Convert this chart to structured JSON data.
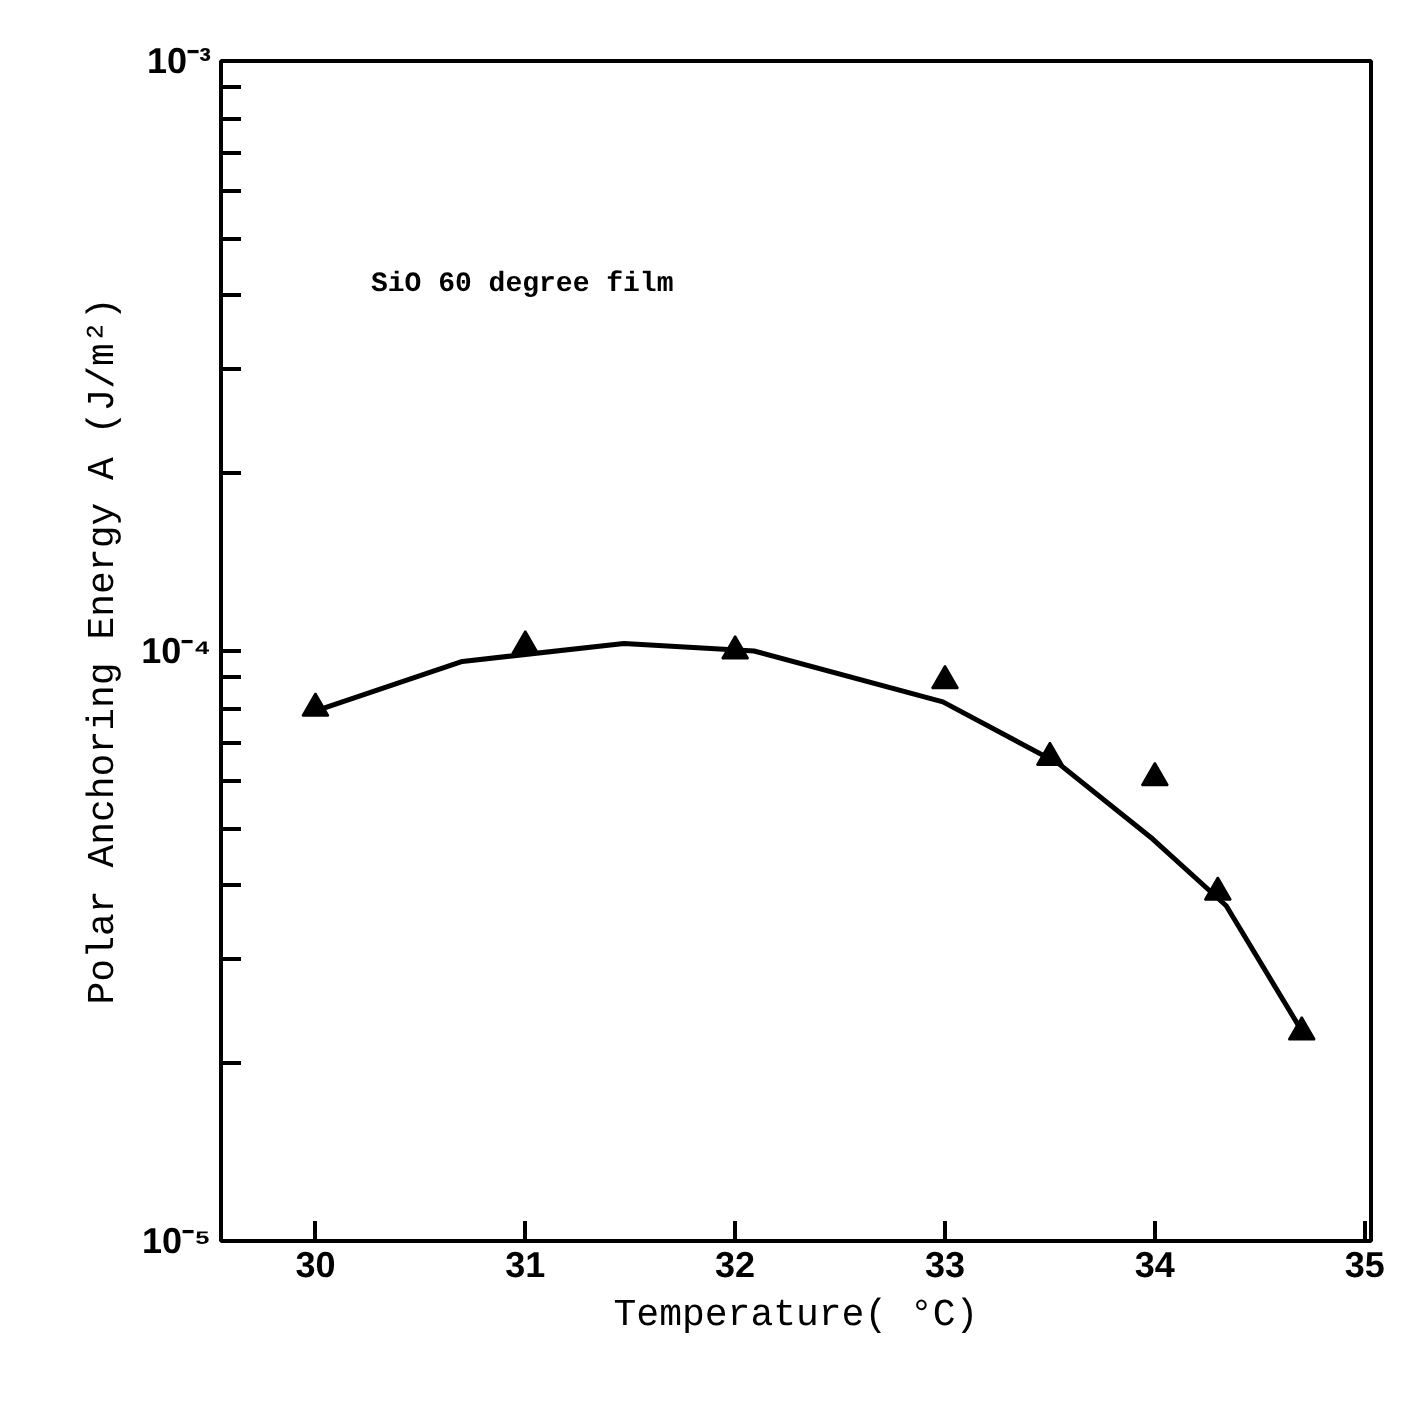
{
  "chart_data": {
    "type": "scatter",
    "xlabel": "Temperature( °C)",
    "ylabel": "Polar Anchoring Energy A (J/m²)",
    "annotations": [
      "SiO 60 degree film"
    ],
    "log": "y",
    "grid": false,
    "marker": "triangle",
    "xlim": [
      29.55,
      35.03
    ],
    "xticks": [
      30,
      31,
      32,
      33,
      34,
      35
    ],
    "ylim": [
      1e-05,
      0.001
    ],
    "yticks": [
      {
        "value": 1e-05,
        "label": "10⁻⁵"
      },
      {
        "value": 2e-05,
        "label": null
      },
      {
        "value": 3e-05,
        "label": null
      },
      {
        "value": 4e-05,
        "label": null
      },
      {
        "value": 5e-05,
        "label": null
      },
      {
        "value": 6e-05,
        "label": null
      },
      {
        "value": 7e-05,
        "label": null
      },
      {
        "value": 8e-05,
        "label": null
      },
      {
        "value": 9e-05,
        "label": null
      },
      {
        "value": 0.0001,
        "label": "10⁻⁴"
      },
      {
        "value": 0.0002,
        "label": null
      },
      {
        "value": 0.0003,
        "label": null
      },
      {
        "value": 0.0004,
        "label": null
      },
      {
        "value": 0.0005,
        "label": null
      },
      {
        "value": 0.0006,
        "label": null
      },
      {
        "value": 0.0007,
        "label": null
      },
      {
        "value": 0.0008,
        "label": null
      },
      {
        "value": 0.0009,
        "label": null
      },
      {
        "value": 0.001,
        "label": "10⁻³"
      }
    ],
    "series": [
      {
        "color": "#000000",
        "x": [
          30,
          31,
          32,
          33,
          33.5,
          34,
          34.3,
          34.7
        ],
        "values": [
          8e-05,
          0.000102,
          0.0001,
          8.9e-05,
          6.6e-05,
          6.1e-05,
          3.9e-05,
          2.26e-05
        ]
      },
      {
        "type": "line",
        "color": "#000000",
        "marker": "none",
        "line_style": "solid",
        "x": [
          30.04,
          30.7,
          31.47,
          32.09,
          32.99,
          33.54,
          33.99,
          34.34,
          34.71
        ],
        "values": [
          8e-05,
          9.6e-05,
          0.000103,
          0.0001,
          8.2e-05,
          6.45e-05,
          4.8e-05,
          3.7e-05,
          2.24e-05
        ]
      }
    ]
  }
}
